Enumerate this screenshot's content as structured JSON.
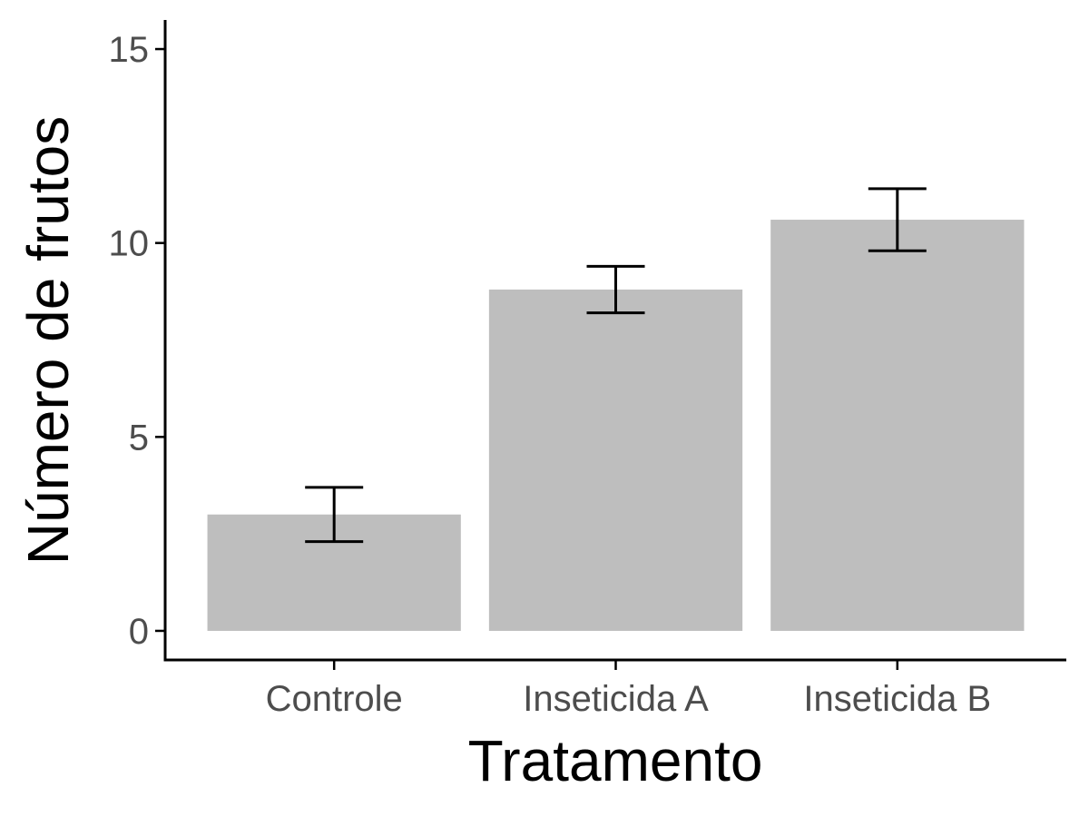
{
  "chart_data": {
    "type": "bar",
    "title": "",
    "xlabel": "Tratamento",
    "ylabel": "Número de frutos",
    "categories": [
      "Controle",
      "Inseticida A",
      "Inseticida B"
    ],
    "values": [
      3.0,
      8.8,
      10.6
    ],
    "error_bars": {
      "lower": [
        2.3,
        8.2,
        9.8
      ],
      "upper": [
        3.7,
        9.4,
        11.4
      ]
    },
    "ylim": [
      -0.75,
      15.75
    ],
    "yticks": [
      0,
      5,
      10,
      15
    ],
    "grid": false,
    "legend": "none",
    "colors": {
      "bar": "#bebebe",
      "error_bar": "#000000",
      "axis": "#000000",
      "tick_label": "#4d4d4d"
    }
  }
}
